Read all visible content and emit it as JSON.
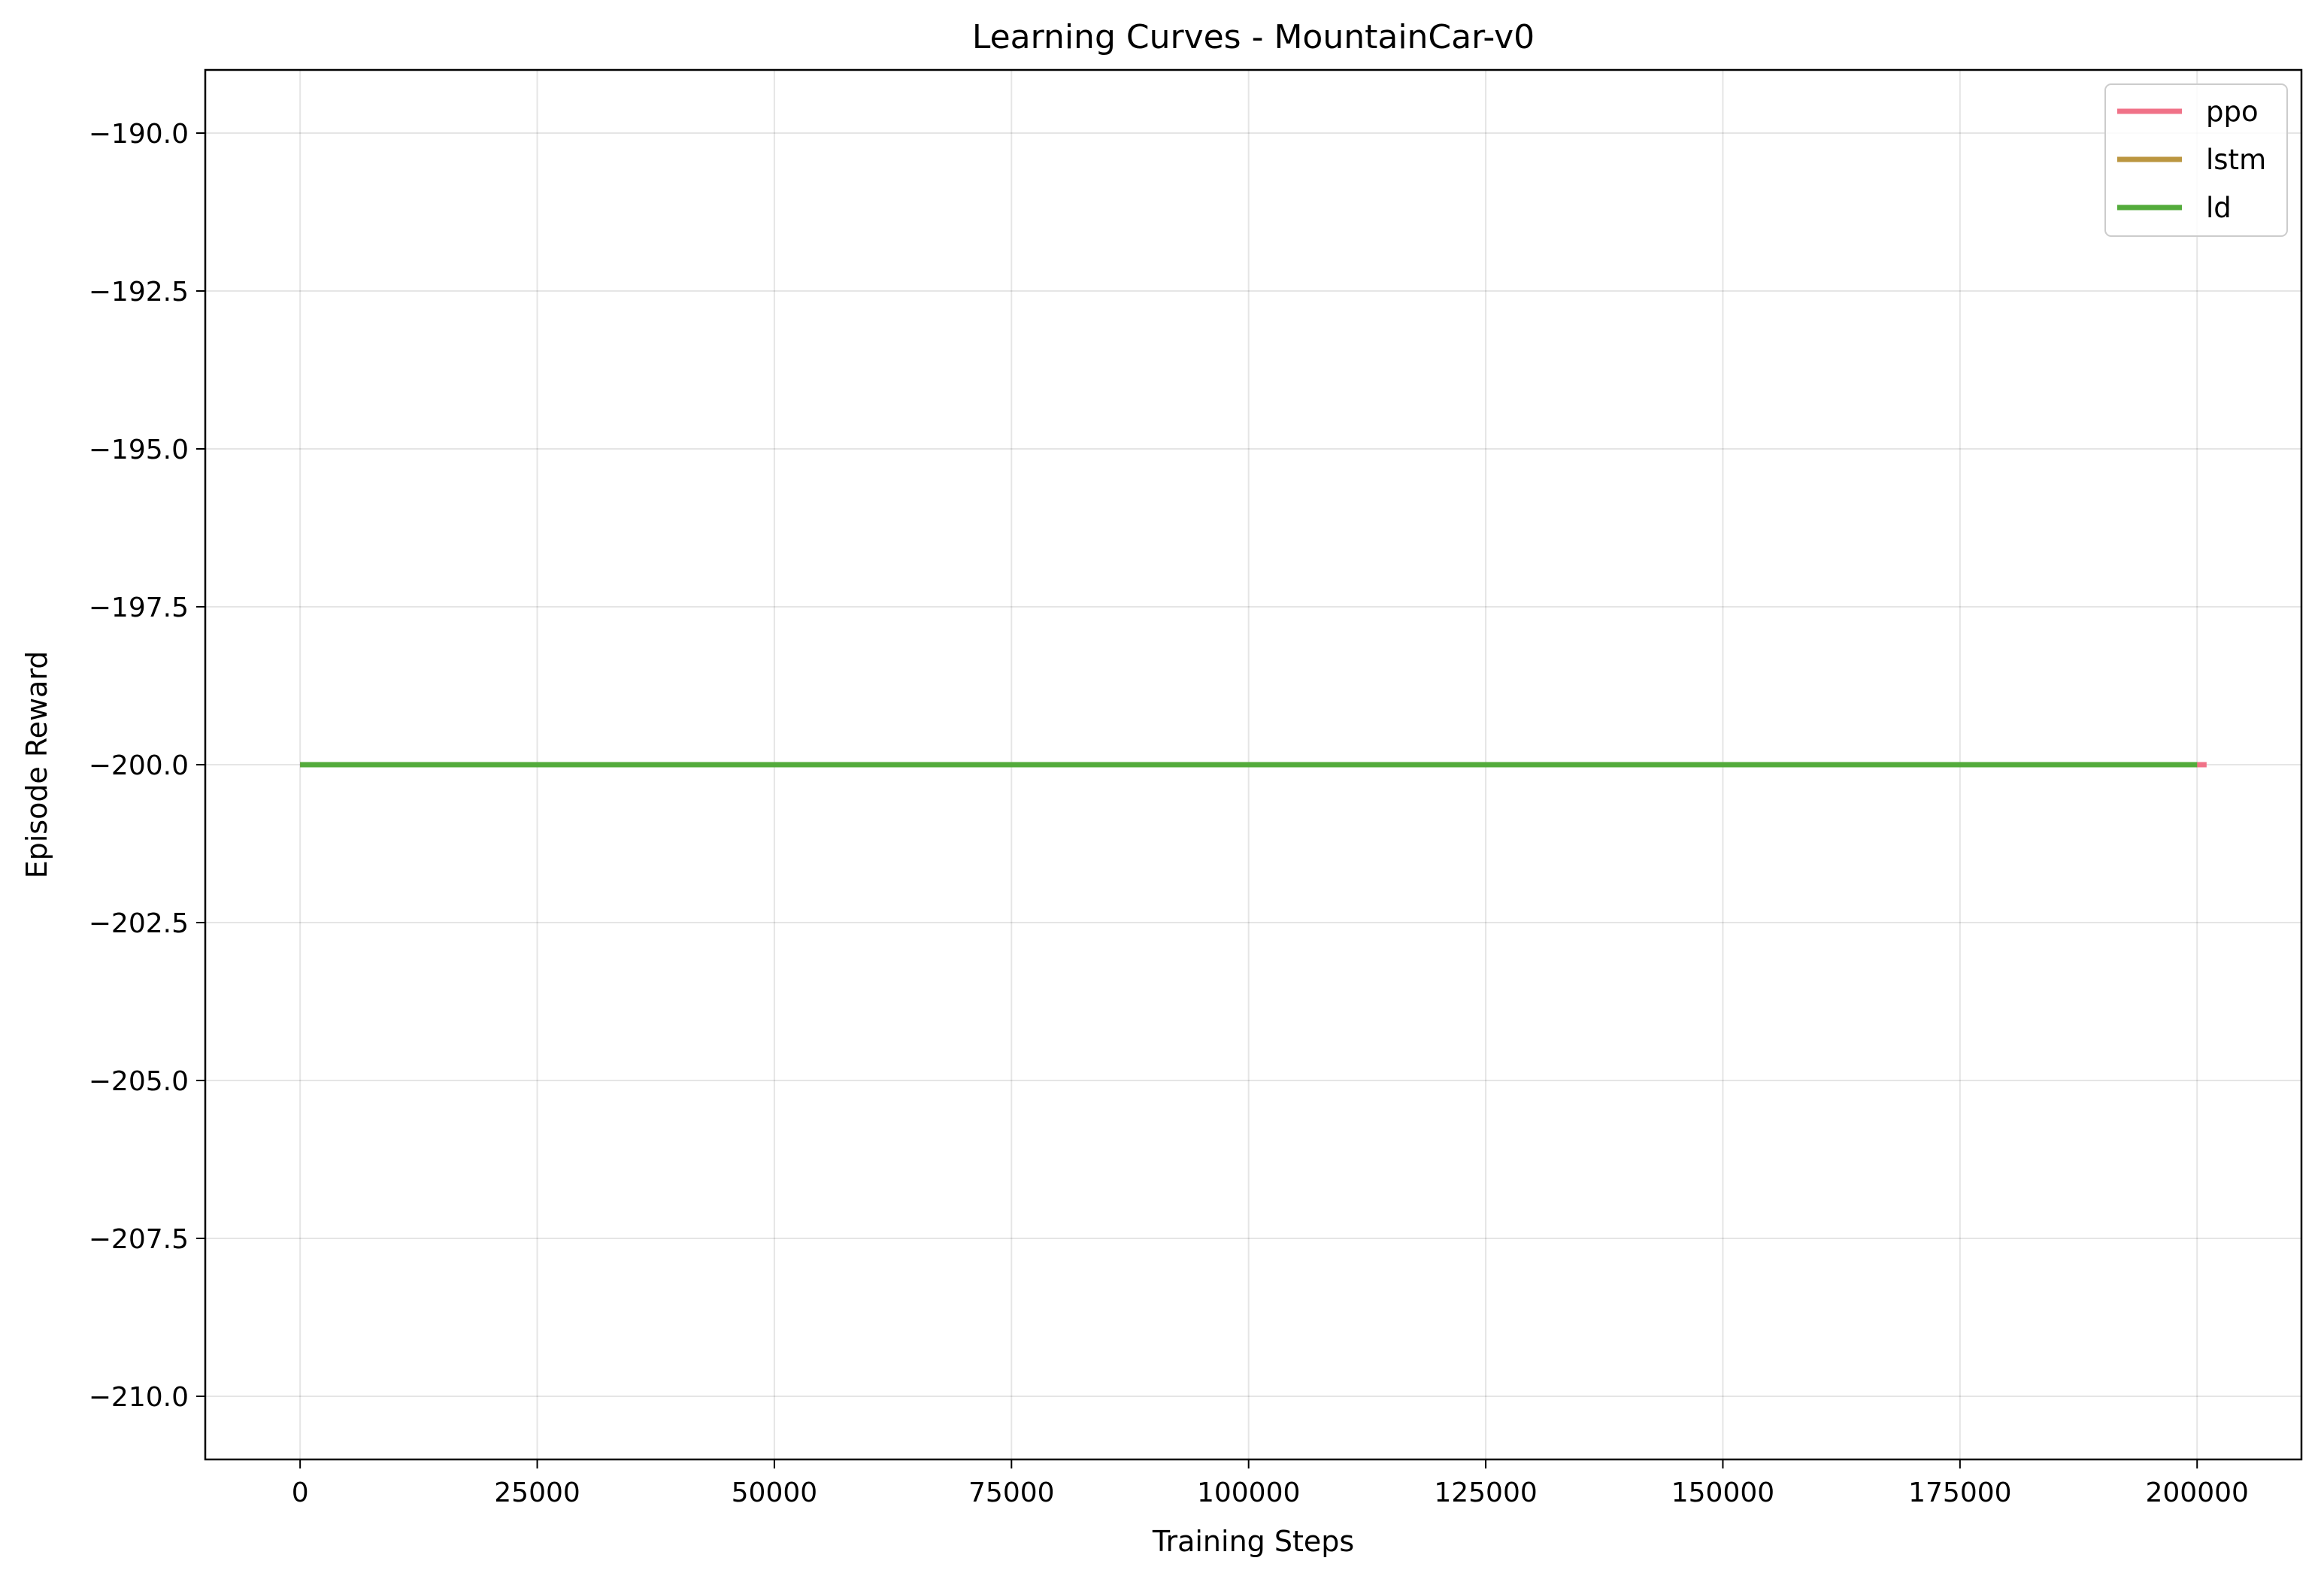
{
  "chart_data": {
    "type": "line",
    "title": "Learning Curves - MountainCar-v0",
    "xlabel": "Training Steps",
    "ylabel": "Episode Reward",
    "xlim": [
      -10000,
      211000
    ],
    "ylim": [
      -211,
      -189
    ],
    "xticks": [
      0,
      25000,
      50000,
      75000,
      100000,
      125000,
      150000,
      175000,
      200000
    ],
    "xtick_labels": [
      "0",
      "25000",
      "50000",
      "75000",
      "100000",
      "125000",
      "150000",
      "175000",
      "200000"
    ],
    "yticks": [
      -190.0,
      -192.5,
      -195.0,
      -197.5,
      -200.0,
      -202.5,
      -205.0,
      -207.5,
      -210.0
    ],
    "ytick_labels": [
      "−190.0",
      "−192.5",
      "−195.0",
      "−197.5",
      "−200.0",
      "−202.5",
      "−205.0",
      "−207.5",
      "−210.0"
    ],
    "grid": true,
    "legend_position": "top-right",
    "series": [
      {
        "name": "ppo",
        "color": "#f07288",
        "x": [
          0,
          201000
        ],
        "y": [
          -200,
          -200
        ]
      },
      {
        "name": "lstm",
        "color": "#bb9640",
        "x": [
          0,
          200000
        ],
        "y": [
          -200,
          -200
        ]
      },
      {
        "name": "ld",
        "color": "#53ab3b",
        "x": [
          0,
          200000
        ],
        "y": [
          -200,
          -200
        ]
      }
    ]
  }
}
